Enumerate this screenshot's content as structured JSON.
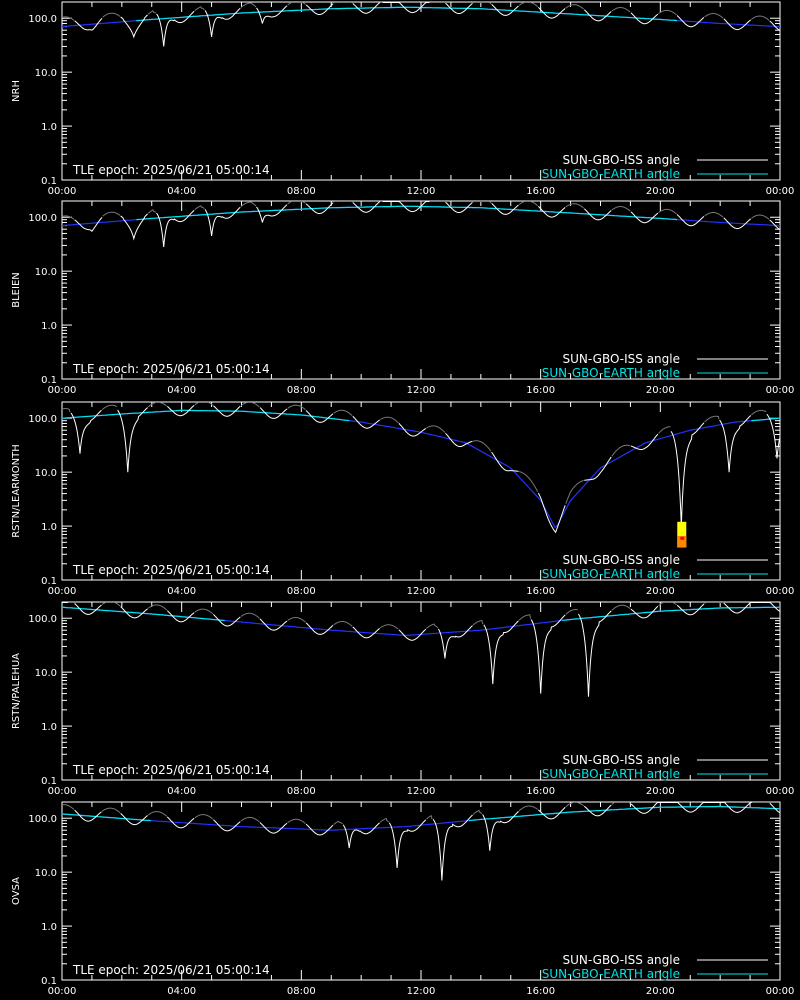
{
  "chart_data": [
    {
      "type": "line",
      "ylabel": "NRH",
      "epoch": "TLE epoch: 2025/06/21 05:00:14",
      "xlim": [
        0,
        24
      ],
      "ylim": [
        0.1,
        200
      ],
      "yscale": "log",
      "x_ticks": [
        "00:00",
        "04:00",
        "08:00",
        "12:00",
        "16:00",
        "20:00",
        "00:00"
      ],
      "y_ticks": [
        "0.1",
        "1.0",
        "10.0",
        "100.0"
      ],
      "legend": [
        {
          "name": "SUN-GBO-ISS angle",
          "color": "#ffffff"
        },
        {
          "name": "SUN-GBO-EARTH angle",
          "color": "#00e5e5"
        }
      ],
      "earth_angle": {
        "x": [
          0,
          3,
          6,
          9,
          11.5,
          14,
          17,
          20,
          22,
          24
        ],
        "y": [
          70,
          95,
          125,
          150,
          160,
          150,
          120,
          95,
          80,
          70
        ]
      },
      "iss_dips": [
        {
          "x": 1.0,
          "y": 60
        },
        {
          "x": 2.4,
          "y": 45
        },
        {
          "x": 3.4,
          "y": 30
        },
        {
          "x": 5.0,
          "y": 45
        },
        {
          "x": 6.7,
          "y": 80
        }
      ]
    },
    {
      "type": "line",
      "ylabel": "BLEIEN",
      "epoch": "TLE epoch: 2025/06/21 05:00:14",
      "xlim": [
        0,
        24
      ],
      "ylim": [
        0.1,
        200
      ],
      "yscale": "log",
      "x_ticks": [
        "00:00",
        "04:00",
        "08:00",
        "12:00",
        "16:00",
        "20:00",
        "00:00"
      ],
      "y_ticks": [
        "0.1",
        "1.0",
        "10.0",
        "100.0"
      ],
      "legend": [
        {
          "name": "SUN-GBO-ISS angle",
          "color": "#ffffff"
        },
        {
          "name": "SUN-GBO-EARTH angle",
          "color": "#00e5e5"
        }
      ],
      "earth_angle": {
        "x": [
          0,
          3,
          6,
          9,
          11.5,
          14,
          17,
          20,
          22,
          24
        ],
        "y": [
          70,
          95,
          125,
          150,
          160,
          150,
          120,
          95,
          80,
          70
        ]
      },
      "iss_dips": [
        {
          "x": 1.0,
          "y": 55
        },
        {
          "x": 2.4,
          "y": 40
        },
        {
          "x": 3.4,
          "y": 28
        },
        {
          "x": 5.0,
          "y": 45
        },
        {
          "x": 6.7,
          "y": 80
        }
      ]
    },
    {
      "type": "line",
      "ylabel": "RSTN/LEARMONTH",
      "epoch": "TLE epoch: 2025/06/21 05:00:14",
      "xlim": [
        0,
        24
      ],
      "ylim": [
        0.1,
        200
      ],
      "yscale": "log",
      "x_ticks": [
        "00:00",
        "04:00",
        "08:00",
        "12:00",
        "16:00",
        "20:00",
        "00:00"
      ],
      "y_ticks": [
        "0.1",
        "1.0",
        "10.0",
        "100.0"
      ],
      "legend": [
        {
          "name": "SUN-GBO-ISS angle",
          "color": "#ffffff"
        },
        {
          "name": "SUN-GBO-EARTH angle",
          "color": "#00e5e5"
        }
      ],
      "earth_angle": {
        "x": [
          0,
          2,
          4,
          6,
          8,
          10,
          12,
          13.5,
          15,
          16,
          16.5,
          17,
          18,
          19.5,
          21,
          22.5,
          24
        ],
        "y": [
          100,
          120,
          140,
          135,
          115,
          85,
          55,
          35,
          12,
          3,
          0.9,
          3,
          12,
          35,
          60,
          85,
          100
        ]
      },
      "iss_dips": [
        {
          "x": 0.6,
          "y": 22
        },
        {
          "x": 2.2,
          "y": 10
        },
        {
          "x": 20.7,
          "y": 1.0
        },
        {
          "x": 22.3,
          "y": 10
        },
        {
          "x": 23.9,
          "y": 18
        }
      ],
      "marker": {
        "x": 20.7,
        "y_low": 0.4,
        "y_high": 1.2,
        "colors": [
          "#ffff00",
          "#ff8800",
          "#ff0000"
        ]
      }
    },
    {
      "type": "line",
      "ylabel": "RSTN/PALEHUA",
      "epoch": "TLE epoch: 2025/06/21 05:00:14",
      "xlim": [
        0,
        24
      ],
      "ylim": [
        0.1,
        200
      ],
      "yscale": "log",
      "x_ticks": [
        "00:00",
        "04:00",
        "08:00",
        "12:00",
        "16:00",
        "20:00",
        "00:00"
      ],
      "y_ticks": [
        "0.1",
        "1.0",
        "10.0",
        "100.0"
      ],
      "legend": [
        {
          "name": "SUN-GBO-ISS angle",
          "color": "#ffffff"
        },
        {
          "name": "SUN-GBO-EARTH angle",
          "color": "#00e5e5"
        }
      ],
      "earth_angle": {
        "x": [
          0,
          3,
          6,
          9,
          11.5,
          14,
          17,
          20,
          22,
          24
        ],
        "y": [
          160,
          120,
          85,
          60,
          48,
          60,
          95,
          135,
          155,
          160
        ]
      },
      "iss_dips": [
        {
          "x": 12.8,
          "y": 18
        },
        {
          "x": 14.4,
          "y": 6
        },
        {
          "x": 16.0,
          "y": 4
        },
        {
          "x": 17.6,
          "y": 3.5
        }
      ]
    },
    {
      "type": "line",
      "ylabel": "OVSA",
      "epoch": "TLE epoch: 2025/06/21 05:00:14",
      "xlim": [
        0,
        24
      ],
      "ylim": [
        0.1,
        200
      ],
      "yscale": "log",
      "x_ticks": [
        "00:00",
        "04:00",
        "08:00",
        "12:00",
        "16:00",
        "20:00",
        "00:00"
      ],
      "y_ticks": [
        "0.1",
        "1.0",
        "10.0",
        "100.0"
      ],
      "legend": [
        {
          "name": "SUN-GBO-ISS angle",
          "color": "#ffffff"
        },
        {
          "name": "SUN-GBO-EARTH angle",
          "color": "#00e5e5"
        }
      ],
      "earth_angle": {
        "x": [
          0,
          3,
          6,
          9,
          11.5,
          14,
          17,
          20,
          22,
          24
        ],
        "y": [
          120,
          90,
          70,
          60,
          70,
          95,
          130,
          160,
          165,
          150
        ]
      },
      "iss_dips": [
        {
          "x": 9.6,
          "y": 28
        },
        {
          "x": 11.2,
          "y": 12
        },
        {
          "x": 12.7,
          "y": 7
        },
        {
          "x": 14.3,
          "y": 25
        }
      ]
    }
  ]
}
